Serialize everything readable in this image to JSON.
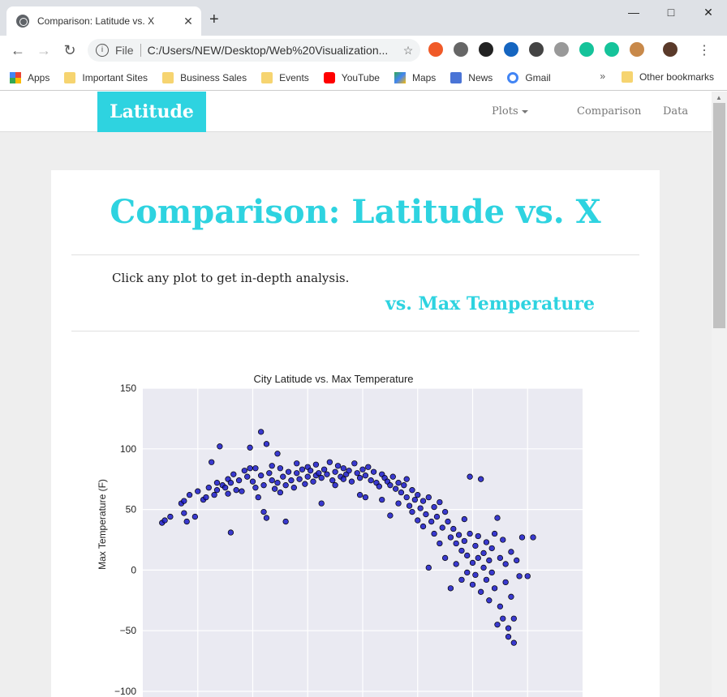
{
  "browser": {
    "tab_title": "Comparison: Latitude vs. X",
    "close_glyph": "✕",
    "new_tab_glyph": "+",
    "omnibox_scheme": "File",
    "url": "C:/Users/NEW/Desktop/Web%20Visualization...",
    "bookmarks": [
      {
        "label": "Apps",
        "icon": "apps-icon"
      },
      {
        "label": "Important Sites",
        "icon": "folder-icon"
      },
      {
        "label": "Business Sales",
        "icon": "folder-icon"
      },
      {
        "label": "Events",
        "icon": "folder-icon"
      },
      {
        "label": "YouTube",
        "icon": "youtube-icon"
      },
      {
        "label": "Maps",
        "icon": "maps-icon"
      },
      {
        "label": "News",
        "icon": "news-icon"
      },
      {
        "label": "Gmail",
        "icon": "google-icon"
      }
    ],
    "more_bookmarks_glyph": "»",
    "other_bookmarks": "Other bookmarks"
  },
  "site": {
    "brand": "Latitude",
    "nav": {
      "plots": "Plots",
      "comparison": "Comparison",
      "data": "Data"
    },
    "heading": "Comparison: Latitude vs. X",
    "description": "Click any plot to get in-depth analysis.",
    "subheading": "vs. Max Temperature"
  },
  "colors": {
    "accent": "#2ed3e0",
    "marker": "#1a1ac8",
    "plot_bg": "#eaeaf2"
  },
  "chart_data": {
    "type": "scatter",
    "title": "City Latitude vs. Max Temperature",
    "xlabel": "",
    "ylabel": "Max Temperature (F)",
    "ylim": [
      -100,
      150
    ],
    "xlim": [
      -60,
      100
    ],
    "yticks": [
      "150",
      "100",
      "50",
      "0",
      "−50",
      "−100"
    ],
    "grid": true,
    "points": [
      [
        -53,
        39
      ],
      [
        -52,
        41
      ],
      [
        -50,
        44
      ],
      [
        -46,
        55
      ],
      [
        -45,
        57
      ],
      [
        -45,
        47
      ],
      [
        -44,
        40
      ],
      [
        -43,
        62
      ],
      [
        -41,
        44
      ],
      [
        -40,
        65
      ],
      [
        -38,
        58
      ],
      [
        -37,
        60
      ],
      [
        -36,
        68
      ],
      [
        -35,
        89
      ],
      [
        -34,
        62
      ],
      [
        -33,
        72
      ],
      [
        -33,
        66
      ],
      [
        -32,
        102
      ],
      [
        -31,
        70
      ],
      [
        -30,
        68
      ],
      [
        -29,
        75
      ],
      [
        -29,
        63
      ],
      [
        -28,
        72
      ],
      [
        -28,
        31
      ],
      [
        -27,
        79
      ],
      [
        -26,
        66
      ],
      [
        -25,
        74
      ],
      [
        -24,
        65
      ],
      [
        -23,
        82
      ],
      [
        -22,
        77
      ],
      [
        -21,
        101
      ],
      [
        -21,
        84
      ],
      [
        -20,
        73
      ],
      [
        -19,
        68
      ],
      [
        -19,
        84
      ],
      [
        -18,
        60
      ],
      [
        -17,
        114
      ],
      [
        -17,
        78
      ],
      [
        -16,
        70
      ],
      [
        -16,
        48
      ],
      [
        -15,
        104
      ],
      [
        -15,
        43
      ],
      [
        -14,
        80
      ],
      [
        -13,
        86
      ],
      [
        -13,
        74
      ],
      [
        -12,
        67
      ],
      [
        -11,
        96
      ],
      [
        -11,
        72
      ],
      [
        -10,
        64
      ],
      [
        -10,
        84
      ],
      [
        -9,
        77
      ],
      [
        -8,
        70
      ],
      [
        -8,
        40
      ],
      [
        -7,
        81
      ],
      [
        -6,
        74
      ],
      [
        -5,
        68
      ],
      [
        -4,
        88
      ],
      [
        -4,
        80
      ],
      [
        -3,
        75
      ],
      [
        -2,
        83
      ],
      [
        -1,
        71
      ],
      [
        0,
        77
      ],
      [
        0,
        85
      ],
      [
        1,
        82
      ],
      [
        2,
        73
      ],
      [
        3,
        78
      ],
      [
        3,
        87
      ],
      [
        4,
        80
      ],
      [
        5,
        55
      ],
      [
        5,
        76
      ],
      [
        6,
        83
      ],
      [
        7,
        79
      ],
      [
        8,
        89
      ],
      [
        9,
        74
      ],
      [
        10,
        81
      ],
      [
        10,
        70
      ],
      [
        11,
        86
      ],
      [
        12,
        77
      ],
      [
        13,
        84
      ],
      [
        13,
        75
      ],
      [
        14,
        79
      ],
      [
        15,
        82
      ],
      [
        16,
        73
      ],
      [
        17,
        88
      ],
      [
        18,
        80
      ],
      [
        19,
        76
      ],
      [
        19,
        62
      ],
      [
        20,
        83
      ],
      [
        21,
        78
      ],
      [
        21,
        60
      ],
      [
        22,
        85
      ],
      [
        23,
        74
      ],
      [
        24,
        81
      ],
      [
        25,
        72
      ],
      [
        26,
        69
      ],
      [
        27,
        79
      ],
      [
        27,
        58
      ],
      [
        28,
        76
      ],
      [
        29,
        73
      ],
      [
        30,
        70
      ],
      [
        30,
        45
      ],
      [
        31,
        77
      ],
      [
        32,
        67
      ],
      [
        33,
        72
      ],
      [
        33,
        55
      ],
      [
        34,
        64
      ],
      [
        35,
        70
      ],
      [
        36,
        60
      ],
      [
        36,
        75
      ],
      [
        37,
        53
      ],
      [
        38,
        66
      ],
      [
        38,
        48
      ],
      [
        39,
        58
      ],
      [
        40,
        62
      ],
      [
        40,
        41
      ],
      [
        41,
        51
      ],
      [
        42,
        57
      ],
      [
        42,
        36
      ],
      [
        43,
        46
      ],
      [
        44,
        60
      ],
      [
        44,
        2
      ],
      [
        45,
        40
      ],
      [
        46,
        52
      ],
      [
        46,
        30
      ],
      [
        47,
        44
      ],
      [
        48,
        56
      ],
      [
        48,
        22
      ],
      [
        49,
        35
      ],
      [
        50,
        48
      ],
      [
        50,
        10
      ],
      [
        51,
        40
      ],
      [
        52,
        27
      ],
      [
        52,
        -15
      ],
      [
        53,
        34
      ],
      [
        54,
        22
      ],
      [
        54,
        5
      ],
      [
        55,
        29
      ],
      [
        56,
        16
      ],
      [
        56,
        -8
      ],
      [
        57,
        24
      ],
      [
        57,
        42
      ],
      [
        58,
        12
      ],
      [
        58,
        -2
      ],
      [
        59,
        77
      ],
      [
        59,
        30
      ],
      [
        60,
        6
      ],
      [
        60,
        -12
      ],
      [
        61,
        20
      ],
      [
        61,
        -4
      ],
      [
        62,
        28
      ],
      [
        62,
        10
      ],
      [
        63,
        -18
      ],
      [
        63,
        75
      ],
      [
        64,
        14
      ],
      [
        64,
        2
      ],
      [
        65,
        23
      ],
      [
        65,
        -8
      ],
      [
        66,
        -25
      ],
      [
        66,
        8
      ],
      [
        67,
        18
      ],
      [
        67,
        -2
      ],
      [
        68,
        -15
      ],
      [
        68,
        30
      ],
      [
        69,
        43
      ],
      [
        69,
        -45
      ],
      [
        70,
        10
      ],
      [
        70,
        -30
      ],
      [
        71,
        -40
      ],
      [
        71,
        25
      ],
      [
        72,
        -10
      ],
      [
        72,
        5
      ],
      [
        73,
        -55
      ],
      [
        73,
        -48
      ],
      [
        74,
        15
      ],
      [
        74,
        -22
      ],
      [
        75,
        -60
      ],
      [
        75,
        -40
      ],
      [
        76,
        8
      ],
      [
        77,
        -5
      ],
      [
        78,
        27
      ],
      [
        80,
        -5
      ],
      [
        82,
        27
      ]
    ]
  }
}
